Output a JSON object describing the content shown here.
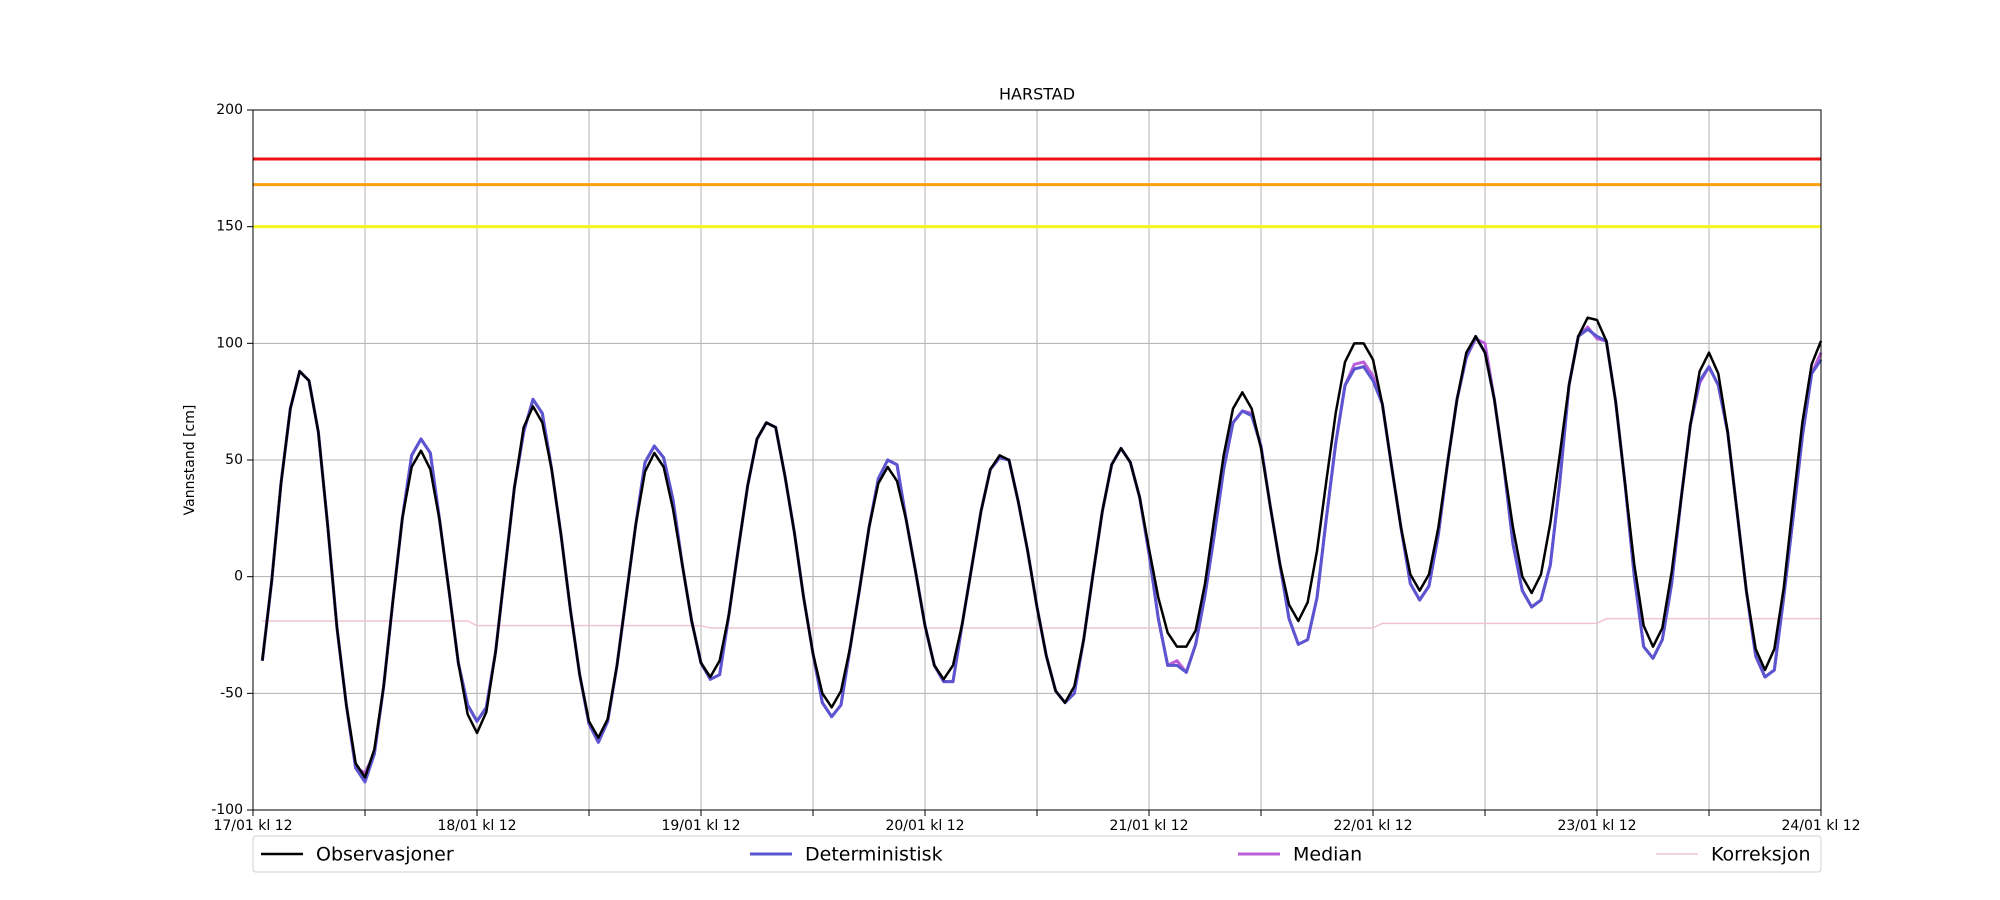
{
  "chart_data": {
    "type": "line",
    "title": "HARSTAD",
    "y_label": "Vannstand [cm]",
    "xlim": [
      0,
      168
    ],
    "ylim": [
      -100,
      200
    ],
    "yticks": [
      -100,
      -50,
      0,
      50,
      100,
      150,
      200
    ],
    "xticks": [
      {
        "value": 0,
        "label": "17/01 kl 12"
      },
      {
        "value": 24,
        "label": "18/01 kl 12"
      },
      {
        "value": 48,
        "label": "19/01 kl 12"
      },
      {
        "value": 72,
        "label": "20/01 kl 12"
      },
      {
        "value": 96,
        "label": "21/01 kl 12"
      },
      {
        "value": 120,
        "label": "22/01 kl 12"
      },
      {
        "value": 144,
        "label": "23/01 kl 12"
      },
      {
        "value": 168,
        "label": "24/01 kl 12"
      }
    ],
    "xminor": [
      12,
      36,
      60,
      84,
      108,
      132,
      156
    ],
    "grid": true,
    "thresholds": [
      {
        "value": 179,
        "color": "#ee1111"
      },
      {
        "value": 168,
        "color": "#ffa010"
      },
      {
        "value": 150,
        "color": "#f5f520"
      }
    ],
    "x": [
      1,
      2,
      3,
      4,
      5,
      6,
      7,
      8,
      9,
      10,
      11,
      12,
      13,
      14,
      15,
      16,
      17,
      18,
      19,
      20,
      21,
      22,
      23,
      24,
      25,
      26,
      27,
      28,
      29,
      30,
      31,
      32,
      33,
      34,
      35,
      36,
      37,
      38,
      39,
      40,
      41,
      42,
      43,
      44,
      45,
      46,
      47,
      48,
      49,
      50,
      51,
      52,
      53,
      54,
      55,
      56,
      57,
      58,
      59,
      60,
      61,
      62,
      63,
      64,
      65,
      66,
      67,
      68,
      69,
      70,
      71,
      72,
      73,
      74,
      75,
      76,
      77,
      78,
      79,
      80,
      81,
      82,
      83,
      84,
      85,
      86,
      87,
      88,
      89,
      90,
      91,
      92,
      93,
      94,
      95,
      96,
      97,
      98,
      99,
      100,
      101,
      102,
      103,
      104,
      105,
      106,
      107,
      108,
      109,
      110,
      111,
      112,
      113,
      114,
      115,
      116,
      117,
      118,
      119,
      120,
      121,
      122,
      123,
      124,
      125,
      126,
      127,
      128,
      129,
      130,
      131,
      132,
      133,
      134,
      135,
      136,
      137,
      138,
      139,
      140,
      141,
      142,
      143,
      144,
      145,
      146,
      147,
      148,
      149,
      150,
      151,
      152,
      153,
      154,
      155,
      156,
      157,
      158,
      159,
      160,
      161,
      162,
      163,
      164,
      165,
      166,
      167,
      168
    ],
    "series": [
      {
        "name": "Observasjoner",
        "color": "#000000",
        "width": 2.5,
        "values": [
          -36,
          -2,
          40,
          72,
          88,
          84,
          62,
          22,
          -22,
          -55,
          -80,
          -86,
          -74,
          -47,
          -10,
          25,
          47,
          54,
          46,
          24,
          -6,
          -37,
          -59,
          -67,
          -58,
          -32,
          3,
          38,
          64,
          73,
          66,
          46,
          18,
          -14,
          -42,
          -62,
          -69,
          -61,
          -38,
          -8,
          22,
          45,
          53,
          47,
          29,
          5,
          -19,
          -37,
          -43,
          -36,
          -16,
          12,
          39,
          59,
          66,
          64,
          43,
          19,
          -9,
          -33,
          -50,
          -56,
          -49,
          -30,
          -5,
          21,
          40,
          47,
          41,
          24,
          2,
          -21,
          -38,
          -44,
          -38,
          -20,
          4,
          28,
          46,
          52,
          50,
          32,
          11,
          -13,
          -34,
          -49,
          -54,
          -47,
          -27,
          1,
          28,
          48,
          55,
          49,
          34,
          12,
          -9,
          -24,
          -30,
          -30,
          -23,
          -3,
          25,
          52,
          72,
          79,
          72,
          55,
          30,
          6,
          -12,
          -19,
          -11,
          11,
          41,
          70,
          92,
          100,
          100,
          93,
          74,
          47,
          21,
          1,
          -6,
          1,
          21,
          49,
          76,
          96,
          103,
          96,
          76,
          48,
          21,
          0,
          -7,
          1,
          23,
          52,
          82,
          103,
          111,
          110,
          101,
          75,
          40,
          5,
          -21,
          -30,
          -22,
          2,
          33,
          65,
          88,
          96,
          87,
          62,
          28,
          -6,
          -31,
          -40,
          -31,
          -5,
          31,
          66,
          91,
          101
        ]
      },
      {
        "name": "Deterministisk",
        "color": "#5b55d0",
        "width": 3,
        "values": [
          -36,
          -2,
          40,
          72,
          88,
          84,
          62,
          22,
          -22,
          -55,
          -82,
          -88,
          -76,
          -47,
          -10,
          25,
          52,
          59,
          53,
          24,
          -6,
          -37,
          -55,
          -62,
          -56,
          -32,
          3,
          38,
          62,
          76,
          70,
          46,
          18,
          -14,
          -42,
          -63,
          -71,
          -62,
          -38,
          -8,
          22,
          49,
          56,
          51,
          33,
          5,
          -19,
          -37,
          -44,
          -42,
          -16,
          12,
          39,
          59,
          66,
          64,
          43,
          19,
          -9,
          -33,
          -54,
          -60,
          -55,
          -30,
          -5,
          21,
          42,
          50,
          48,
          24,
          2,
          -21,
          -38,
          -45,
          -45,
          -20,
          4,
          28,
          46,
          51,
          50,
          32,
          11,
          -13,
          -34,
          -49,
          -54,
          -50,
          -27,
          1,
          28,
          48,
          55,
          49,
          34,
          10,
          -18,
          -38,
          -38,
          -41,
          -29,
          -8,
          18,
          46,
          66,
          71,
          69,
          56,
          30,
          6,
          -18,
          -29,
          -27,
          -9,
          25,
          57,
          82,
          89,
          90,
          84,
          74,
          47,
          21,
          -3,
          -10,
          -4,
          18,
          49,
          76,
          94,
          103,
          96,
          76,
          48,
          14,
          -6,
          -13,
          -10,
          5,
          40,
          82,
          103,
          106,
          103,
          101,
          75,
          40,
          0,
          -30,
          -35,
          -27,
          -3,
          33,
          65,
          84,
          90,
          82,
          62,
          28,
          -6,
          -34,
          -43,
          -40,
          -9,
          25,
          60,
          87,
          93
        ]
      },
      {
        "name": "Median",
        "color": "#bb5fd8",
        "width": 3,
        "values": [
          -36,
          -2,
          40,
          72,
          88,
          84,
          62,
          22,
          -22,
          -55,
          -82,
          -84,
          -76,
          -47,
          -10,
          25,
          52,
          59,
          53,
          24,
          -6,
          -37,
          -55,
          -62,
          -56,
          -32,
          3,
          38,
          62,
          76,
          70,
          46,
          18,
          -14,
          -42,
          -63,
          -71,
          -62,
          -38,
          -8,
          22,
          49,
          56,
          51,
          33,
          5,
          -19,
          -37,
          -44,
          -42,
          -16,
          12,
          39,
          59,
          66,
          64,
          43,
          19,
          -9,
          -33,
          -54,
          -60,
          -55,
          -30,
          -5,
          21,
          42,
          50,
          48,
          24,
          2,
          -21,
          -38,
          -45,
          -45,
          -20,
          4,
          28,
          46,
          51,
          50,
          32,
          11,
          -13,
          -34,
          -49,
          -54,
          -50,
          -27,
          1,
          28,
          48,
          55,
          49,
          34,
          10,
          -18,
          -38,
          -36,
          -41,
          -29,
          -8,
          18,
          46,
          66,
          71,
          70,
          56,
          30,
          6,
          -18,
          -29,
          -27,
          -9,
          25,
          57,
          82,
          91,
          92,
          86,
          74,
          47,
          21,
          -3,
          -10,
          -4,
          18,
          49,
          76,
          94,
          102,
          100,
          76,
          48,
          14,
          -6,
          -13,
          -10,
          5,
          40,
          82,
          103,
          107,
          102,
          101,
          75,
          40,
          0,
          -30,
          -35,
          -27,
          -3,
          33,
          65,
          83,
          90,
          82,
          62,
          28,
          -6,
          -34,
          -43,
          -40,
          -9,
          25,
          60,
          87,
          96
        ]
      },
      {
        "name": "Korreksjon",
        "color": "#f0c4d2",
        "width": 1.5,
        "values": [
          -19,
          -19,
          -19,
          -19,
          -19,
          -19,
          -19,
          -19,
          -19,
          -19,
          -19,
          -19,
          -19,
          -19,
          -19,
          -19,
          -19,
          -19,
          -19,
          -19,
          -19,
          -19,
          -19,
          -21,
          -21,
          -21,
          -21,
          -21,
          -21,
          -21,
          -21,
          -21,
          -21,
          -21,
          -21,
          -21,
          -21,
          -21,
          -21,
          -21,
          -21,
          -21,
          -21,
          -21,
          -21,
          -21,
          -21,
          -21,
          -22,
          -22,
          -22,
          -22,
          -22,
          -22,
          -22,
          -22,
          -22,
          -22,
          -22,
          -22,
          -22,
          -22,
          -22,
          -22,
          -22,
          -22,
          -22,
          -22,
          -22,
          -22,
          -22,
          -22,
          -22,
          -22,
          -22,
          -22,
          -22,
          -22,
          -22,
          -22,
          -22,
          -22,
          -22,
          -22,
          -22,
          -22,
          -22,
          -22,
          -22,
          -22,
          -22,
          -22,
          -22,
          -22,
          -22,
          -22,
          -22,
          -22,
          -22,
          -22,
          -22,
          -22,
          -22,
          -22,
          -22,
          -22,
          -22,
          -22,
          -22,
          -22,
          -22,
          -22,
          -22,
          -22,
          -22,
          -22,
          -22,
          -22,
          -22,
          -22,
          -20,
          -20,
          -20,
          -20,
          -20,
          -20,
          -20,
          -20,
          -20,
          -20,
          -20,
          -20,
          -20,
          -20,
          -20,
          -20,
          -20,
          -20,
          -20,
          -20,
          -20,
          -20,
          -20,
          -20,
          -18,
          -18,
          -18,
          -18,
          -18,
          -18,
          -18,
          -18,
          -18,
          -18,
          -18,
          -18,
          -18,
          -18,
          -18,
          -18,
          -18,
          -18,
          -18,
          -18,
          -18,
          -18,
          -18,
          -18
        ]
      }
    ]
  }
}
